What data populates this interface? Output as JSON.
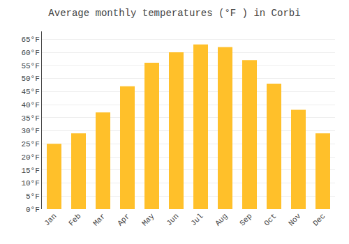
{
  "chart_data": {
    "type": "bar",
    "title": "Average monthly temperatures (°F ) in Corbi",
    "categories": [
      "Jan",
      "Feb",
      "Mar",
      "Apr",
      "May",
      "Jun",
      "Jul",
      "Aug",
      "Sep",
      "Oct",
      "Nov",
      "Dec"
    ],
    "values": [
      25,
      29,
      37,
      47,
      56,
      60,
      63,
      62,
      57,
      48,
      38,
      29
    ],
    "color": "#FFC02A",
    "ylim": [
      0,
      68
    ],
    "yticks": [
      {
        "value": 0,
        "label": "0°F"
      },
      {
        "value": 5,
        "label": "5°F"
      },
      {
        "value": 10,
        "label": "10°F"
      },
      {
        "value": 15,
        "label": "15°F"
      },
      {
        "value": 20,
        "label": "20°F"
      },
      {
        "value": 25,
        "label": "25°F"
      },
      {
        "value": 30,
        "label": "30°F"
      },
      {
        "value": 35,
        "label": "35°F"
      },
      {
        "value": 40,
        "label": "40°F"
      },
      {
        "value": 45,
        "label": "45°F"
      },
      {
        "value": 50,
        "label": "50°F"
      },
      {
        "value": 55,
        "label": "55°F"
      },
      {
        "value": 60,
        "label": "60°F"
      },
      {
        "value": 65,
        "label": "65°F"
      }
    ],
    "grid": true
  }
}
